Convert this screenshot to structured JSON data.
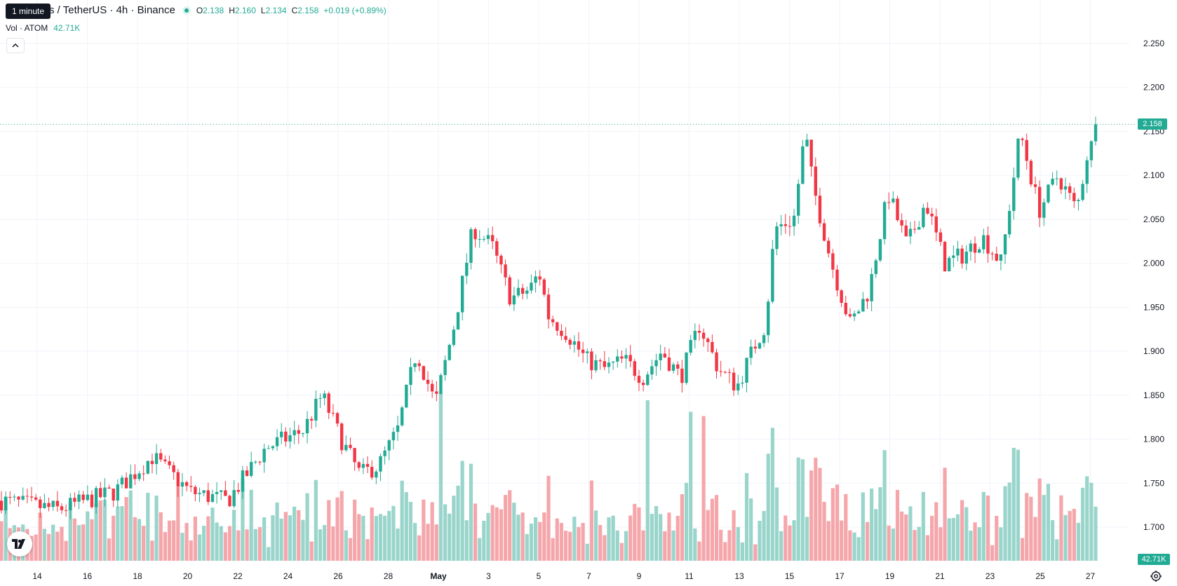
{
  "header": {
    "tooltip": "1 minute",
    "title": "s / TetherUS · 4h · Binance",
    "ohlc": [
      {
        "key": "O",
        "value": "2.138"
      },
      {
        "key": "H",
        "value": "2.160"
      },
      {
        "key": "L",
        "value": "2.134"
      },
      {
        "key": "C",
        "value": "2.158"
      }
    ],
    "change": "+0.019 (+0.89%)"
  },
  "volume_legend": {
    "label": "Vol · ATOM",
    "value": "42.71K"
  },
  "price_axis": {
    "last_price_tag": "2.158",
    "volume_tag": "42.71K"
  },
  "colors": {
    "up": "#22ab94",
    "down": "#f23645",
    "vol_up": "#99d5cb",
    "vol_down": "#f5a6ab",
    "grid": "#f0f3fa",
    "text": "#131722"
  },
  "icons": {
    "logo": "tradingview-logo-icon",
    "collapse": "chevron-up-icon",
    "settings": "gear-icon"
  },
  "chart_data": {
    "type": "candlestick",
    "x_tick_labels": [
      "14",
      "16",
      "18",
      "20",
      "22",
      "24",
      "26",
      "28",
      "May",
      "3",
      "5",
      "7",
      "9",
      "11",
      "13",
      "15",
      "17",
      "19",
      "21",
      "23",
      "25",
      "27"
    ],
    "y_tick_labels": [
      "2.250",
      "2.200",
      "2.150",
      "2.100",
      "2.050",
      "2.000",
      "1.950",
      "1.900",
      "1.850",
      "1.800",
      "1.750",
      "1.700"
    ],
    "ylim": [
      1.68,
      2.265
    ],
    "last_price": 2.158,
    "grid": true,
    "series": [
      {
        "name": "ATOM/USDT",
        "close_path": [
          [
            0,
            1.73
          ],
          [
            3,
            1.72
          ],
          [
            6,
            1.74
          ],
          [
            8,
            1.78
          ],
          [
            10,
            1.74
          ],
          [
            12,
            1.73
          ],
          [
            14,
            1.79
          ],
          [
            16,
            1.81
          ],
          [
            17,
            1.85
          ],
          [
            18,
            1.8
          ],
          [
            19,
            1.76
          ],
          [
            20,
            1.77
          ],
          [
            21,
            1.81
          ],
          [
            22,
            1.9
          ],
          [
            23,
            1.84
          ],
          [
            24,
            1.93
          ],
          [
            25,
            2.04
          ],
          [
            26,
            2.02
          ],
          [
            27,
            1.96
          ],
          [
            28,
            1.97
          ],
          [
            28.5,
            1.99
          ],
          [
            29,
            1.94
          ],
          [
            30,
            1.92
          ],
          [
            31,
            1.89
          ],
          [
            32,
            1.88
          ],
          [
            33,
            1.89
          ],
          [
            34,
            1.87
          ],
          [
            35,
            1.9
          ],
          [
            36,
            1.87
          ],
          [
            37,
            1.93
          ],
          [
            38,
            1.88
          ],
          [
            39,
            1.86
          ],
          [
            40,
            1.91
          ],
          [
            40.5,
            1.93
          ],
          [
            41,
            2.04
          ],
          [
            42,
            2.05
          ],
          [
            42.6,
            2.15
          ],
          [
            43,
            2.09
          ],
          [
            44,
            2.0
          ],
          [
            45,
            1.93
          ],
          [
            46,
            1.97
          ],
          [
            47,
            2.08
          ],
          [
            48,
            2.02
          ],
          [
            49,
            2.07
          ],
          [
            50,
            2.0
          ],
          [
            51,
            2.01
          ],
          [
            52,
            2.03
          ],
          [
            53,
            2.0
          ],
          [
            54,
            2.15
          ],
          [
            55,
            2.06
          ],
          [
            56,
            2.1
          ],
          [
            57,
            2.06
          ],
          [
            57.6,
            2.13
          ],
          [
            58,
            2.138
          ]
        ]
      },
      {
        "name": "Vol",
        "y_range_label": "volume pane",
        "approx_values_k": [
          30,
          40,
          90,
          60,
          40,
          140,
          70,
          50,
          60,
          90,
          60,
          75,
          120,
          60,
          40,
          50,
          45,
          160,
          230,
          210,
          120,
          40,
          60,
          160,
          80,
          40,
          120,
          70,
          50,
          60,
          150,
          90
        ]
      }
    ]
  }
}
